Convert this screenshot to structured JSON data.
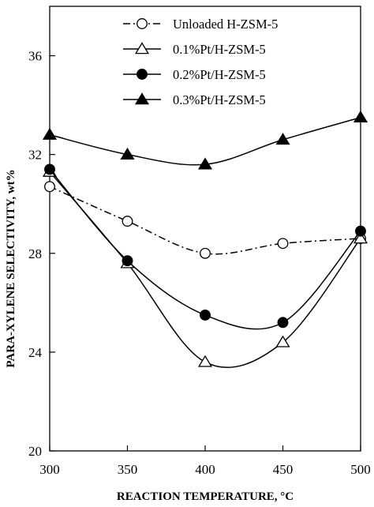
{
  "chart_data": {
    "type": "line",
    "title": "",
    "xlabel": "REACTION TEMPERATURE, °C",
    "ylabel": "PARA-XYLENE SELECTIVITY, wt%",
    "x": [
      300,
      350,
      400,
      450,
      500
    ],
    "x_ticks": [
      "300",
      "350",
      "400",
      "450",
      "500"
    ],
    "y_ticks": [
      "20",
      "24",
      "28",
      "32",
      "36"
    ],
    "xlim": [
      300,
      500
    ],
    "ylim": [
      20,
      38
    ],
    "grid": false,
    "legend_position": "top-right",
    "series": [
      {
        "name": "Unloaded H-ZSM-5",
        "values": [
          30.7,
          29.3,
          28.0,
          28.4,
          28.6
        ],
        "marker": "open-circle",
        "line": "dash-dot",
        "color": "#000000"
      },
      {
        "name": "0.1%Pt/H-ZSM-5",
        "values": [
          31.3,
          27.6,
          23.6,
          24.4,
          28.6
        ],
        "marker": "open-triangle",
        "line": "solid",
        "color": "#000000"
      },
      {
        "name": "0.2%Pt/H-ZSM-5",
        "values": [
          31.4,
          27.7,
          25.5,
          25.2,
          28.9
        ],
        "marker": "filled-circle",
        "line": "solid",
        "color": "#000000"
      },
      {
        "name": "0.3%Pt/H-ZSM-5",
        "values": [
          32.8,
          32.0,
          31.6,
          32.6,
          33.5
        ],
        "marker": "filled-triangle",
        "line": "solid",
        "color": "#000000"
      }
    ]
  }
}
